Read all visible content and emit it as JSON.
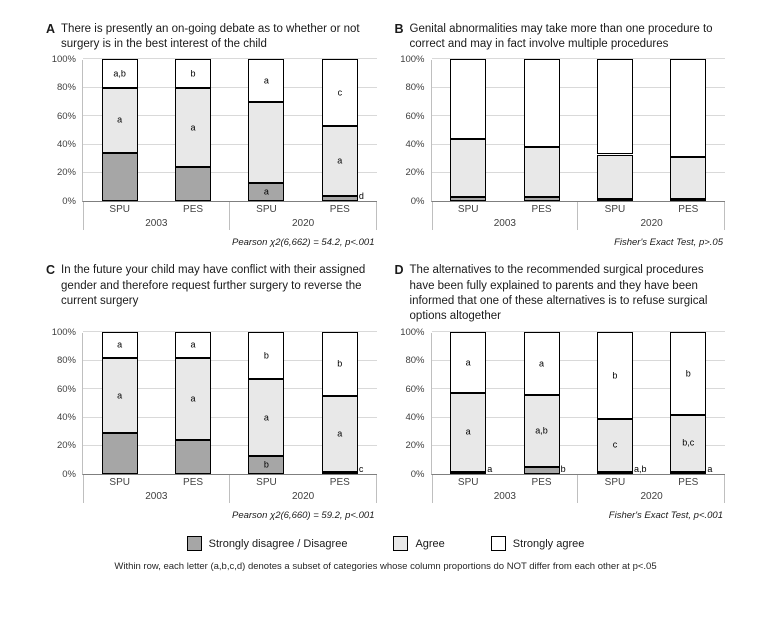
{
  "footnote": "Within row, each letter (a,b,c,d) denotes a subset of categories whose column proportions do NOT differ from each other at p<.05",
  "legend": {
    "items": [
      {
        "label": "Strongly disagree / Disagree",
        "color": "#a6a6a6"
      },
      {
        "label": "Agree",
        "color": "#e8e8e8"
      },
      {
        "label": "Strongly agree",
        "color": "#ffffff"
      }
    ]
  },
  "chart_data": [
    {
      "type": "bar",
      "stacked": true,
      "panel_label": "A",
      "title": "There is presently an on-going debate as to whether or not surgery is in the best interest of the child",
      "stat_caption": "Pearson χ2(6,662) = 54.2, p<.001",
      "categories": [
        "SPU",
        "PES",
        "SPU",
        "PES"
      ],
      "groups": [
        {
          "label": "2003",
          "span": 2
        },
        {
          "label": "2020",
          "span": 2
        }
      ],
      "ylim": [
        0,
        100
      ],
      "y_ticks": [
        "0%",
        "20%",
        "40%",
        "60%",
        "80%",
        "100%"
      ],
      "grid": true,
      "series": [
        {
          "name": "Strongly disagree / Disagree",
          "color": "#a6a6a6",
          "values": [
            34,
            24,
            13,
            4
          ],
          "letters": [
            "",
            "",
            "a",
            ""
          ],
          "letters_outside": [
            "",
            "",
            "",
            "d"
          ]
        },
        {
          "name": "Agree",
          "color": "#e8e8e8",
          "values": [
            46,
            56,
            57,
            49
          ],
          "letters": [
            "a",
            "a",
            "",
            "a"
          ],
          "letters_outside": [
            "",
            "",
            "",
            ""
          ]
        },
        {
          "name": "Strongly agree",
          "color": "#ffffff",
          "values": [
            20,
            20,
            30,
            47
          ],
          "letters": [
            "a,b",
            "b",
            "a",
            "c"
          ],
          "letters_outside": [
            "",
            "",
            "",
            ""
          ]
        }
      ]
    },
    {
      "type": "bar",
      "stacked": true,
      "panel_label": "B",
      "title": "Genital abnormalities may take more than one procedure to correct and may in fact involve multiple procedures",
      "stat_caption": "Fisher's Exact Test, p>.05",
      "categories": [
        "SPU",
        "PES",
        "SPU",
        "PES"
      ],
      "groups": [
        {
          "label": "2003",
          "span": 2
        },
        {
          "label": "2020",
          "span": 2
        }
      ],
      "ylim": [
        0,
        100
      ],
      "y_ticks": [
        "0%",
        "20%",
        "40%",
        "60%",
        "80%",
        "100%"
      ],
      "grid": true,
      "series": [
        {
          "name": "Strongly disagree / Disagree",
          "color": "#a6a6a6",
          "values": [
            3,
            3,
            2,
            2
          ],
          "letters": [
            "",
            "",
            "",
            ""
          ],
          "letters_outside": [
            "",
            "",
            "",
            ""
          ]
        },
        {
          "name": "Agree",
          "color": "#e8e8e8",
          "values": [
            41,
            35,
            31,
            29
          ],
          "letters": [
            "",
            "",
            "",
            ""
          ],
          "letters_outside": [
            "",
            "",
            "",
            ""
          ]
        },
        {
          "name": "Strongly agree",
          "color": "#ffffff",
          "values": [
            56,
            62,
            67,
            69
          ],
          "letters": [
            "",
            "",
            "",
            ""
          ],
          "letters_outside": [
            "",
            "",
            "",
            ""
          ]
        }
      ]
    },
    {
      "type": "bar",
      "stacked": true,
      "panel_label": "C",
      "title": "In the future your child may have conflict with their assigned gender and therefore request further surgery to reverse the current surgery",
      "stat_caption": "Pearson χ2(6,660) = 59.2, p<.001",
      "categories": [
        "SPU",
        "PES",
        "SPU",
        "PES"
      ],
      "groups": [
        {
          "label": "2003",
          "span": 2
        },
        {
          "label": "2020",
          "span": 2
        }
      ],
      "ylim": [
        0,
        100
      ],
      "y_ticks": [
        "0%",
        "20%",
        "40%",
        "60%",
        "80%",
        "100%"
      ],
      "grid": true,
      "series": [
        {
          "name": "Strongly disagree / Disagree",
          "color": "#a6a6a6",
          "values": [
            29,
            24,
            13,
            2
          ],
          "letters": [
            "",
            "",
            "b",
            ""
          ],
          "letters_outside": [
            "",
            "",
            "",
            "c"
          ]
        },
        {
          "name": "Agree",
          "color": "#e8e8e8",
          "values": [
            53,
            58,
            54,
            53
          ],
          "letters": [
            "a",
            "a",
            "a",
            "a"
          ],
          "letters_outside": [
            "",
            "",
            "",
            ""
          ]
        },
        {
          "name": "Strongly agree",
          "color": "#ffffff",
          "values": [
            18,
            18,
            33,
            45
          ],
          "letters": [
            "a",
            "a",
            "b",
            "b"
          ],
          "letters_outside": [
            "",
            "",
            "",
            ""
          ]
        }
      ]
    },
    {
      "type": "bar",
      "stacked": true,
      "panel_label": "D",
      "title": "The alternatives to the recommended surgical procedures have been fully explained to parents and they have been informed that one of these alternatives is to refuse surgical options altogether",
      "stat_caption": "Fisher's Exact Test, p<.001",
      "categories": [
        "SPU",
        "PES",
        "SPU",
        "PES"
      ],
      "groups": [
        {
          "label": "2003",
          "span": 2
        },
        {
          "label": "2020",
          "span": 2
        }
      ],
      "ylim": [
        0,
        100
      ],
      "y_ticks": [
        "0%",
        "20%",
        "40%",
        "60%",
        "80%",
        "100%"
      ],
      "grid": true,
      "series": [
        {
          "name": "Strongly disagree / Disagree",
          "color": "#a6a6a6",
          "values": [
            2,
            5,
            2,
            2
          ],
          "letters": [
            "",
            "",
            "",
            ""
          ],
          "letters_outside": [
            "a",
            "b",
            "a,b",
            "a"
          ]
        },
        {
          "name": "Agree",
          "color": "#e8e8e8",
          "values": [
            55,
            51,
            37,
            40
          ],
          "letters": [
            "a",
            "a,b",
            "c",
            "b,c"
          ],
          "letters_outside": [
            "",
            "",
            "",
            ""
          ]
        },
        {
          "name": "Strongly agree",
          "color": "#ffffff",
          "values": [
            43,
            44,
            61,
            58
          ],
          "letters": [
            "a",
            "a",
            "b",
            "b"
          ],
          "letters_outside": [
            "",
            "",
            "",
            ""
          ]
        }
      ]
    }
  ]
}
